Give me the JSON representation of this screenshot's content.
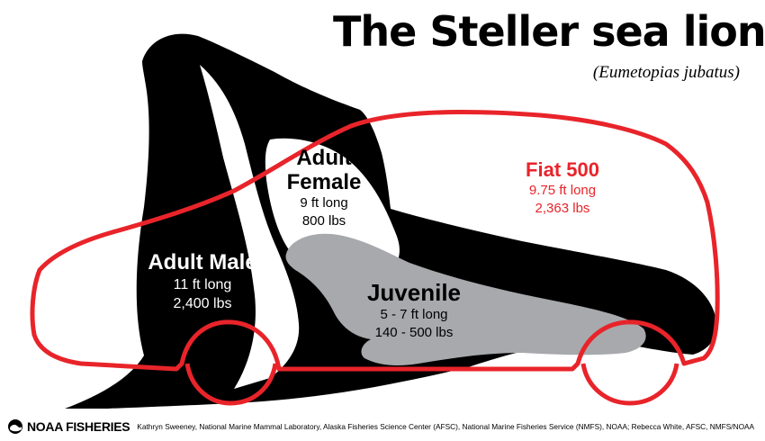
{
  "title": "The Steller sea lion",
  "subtitle": "(Eumetopias jubatus)",
  "animals": {
    "adult_male": {
      "name": "Adult Male",
      "length": "11 ft long",
      "weight": "2,400 lbs"
    },
    "adult_female": {
      "name_line1": "Adult",
      "name_line2": "Female",
      "length": "9 ft long",
      "weight": "800 lbs"
    },
    "juvenile": {
      "name": "Juvenile",
      "length": "5 - 7 ft long",
      "weight": "140 - 500 lbs"
    }
  },
  "car": {
    "name": "Fiat 500",
    "length": "9.75 ft long",
    "weight": "2,363 lbs"
  },
  "footer": {
    "logo": "NOAA FISHERIES",
    "credit": "Kathryn Sweeney, National Marine Mammal Laboratory, Alaska Fisheries Science Center (AFSC), National Marine Fisheries Service (NMFS), NOAA; Rebecca White, AFSC, NMFS/NOAA"
  },
  "colors": {
    "silhouette": "#000000",
    "juvenile": "#a7a9ac",
    "car_outline": "#e8242a",
    "background": "#ffffff"
  }
}
